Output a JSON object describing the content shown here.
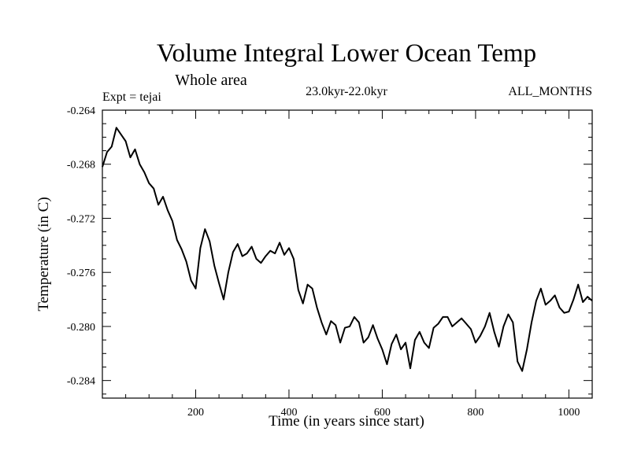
{
  "chart_data": {
    "type": "line",
    "title": "Volume Integral Lower Ocean Temp",
    "subtitle": "Whole area",
    "experiment_label": "Expt = tejai",
    "period_label": "23.0kyr-22.0kyr",
    "months_label": "ALL_MONTHS",
    "xlabel": "Time (in years since start)",
    "ylabel": "Temperature (in C)",
    "xlim": [
      0,
      1050
    ],
    "ylim": [
      -0.2853,
      -0.264
    ],
    "x_ticks": [
      200,
      400,
      600,
      800,
      1000
    ],
    "x_tick_labels": [
      "200",
      "400",
      "600",
      "800",
      "1000"
    ],
    "y_ticks": [
      -0.264,
      -0.268,
      -0.272,
      -0.276,
      -0.28,
      -0.284
    ],
    "y_tick_labels": [
      "-0.264",
      "-0.268",
      "-0.272",
      "-0.276",
      "-0.280",
      "-0.284"
    ],
    "line_color": "#000000",
    "series": [
      {
        "name": "Volume Integral Lower Ocean Temp",
        "x": [
          0,
          10,
          20,
          30,
          40,
          50,
          60,
          70,
          80,
          90,
          100,
          110,
          120,
          130,
          140,
          150,
          160,
          170,
          180,
          190,
          200,
          210,
          220,
          230,
          240,
          250,
          260,
          270,
          280,
          290,
          300,
          310,
          320,
          330,
          340,
          350,
          360,
          370,
          380,
          390,
          400,
          410,
          420,
          430,
          440,
          450,
          460,
          470,
          480,
          490,
          500,
          510,
          520,
          530,
          540,
          550,
          560,
          570,
          580,
          590,
          600,
          610,
          620,
          630,
          640,
          650,
          660,
          670,
          680,
          690,
          700,
          710,
          720,
          730,
          740,
          750,
          760,
          770,
          780,
          790,
          800,
          810,
          820,
          830,
          840,
          850,
          860,
          870,
          880,
          890,
          900,
          910,
          920,
          930,
          940,
          950,
          960,
          970,
          980,
          990,
          1000,
          1010,
          1020,
          1030,
          1040,
          1050
        ],
        "values": [
          -0.2682,
          -0.2671,
          -0.2667,
          -0.2653,
          -0.2658,
          -0.2663,
          -0.2675,
          -0.2669,
          -0.268,
          -0.2686,
          -0.2694,
          -0.2698,
          -0.271,
          -0.2704,
          -0.2714,
          -0.2722,
          -0.2736,
          -0.2743,
          -0.2752,
          -0.2766,
          -0.2772,
          -0.2742,
          -0.2728,
          -0.2737,
          -0.2755,
          -0.2768,
          -0.278,
          -0.276,
          -0.2745,
          -0.2739,
          -0.2748,
          -0.2746,
          -0.2741,
          -0.275,
          -0.2753,
          -0.2748,
          -0.2744,
          -0.2746,
          -0.2738,
          -0.2747,
          -0.2742,
          -0.275,
          -0.2773,
          -0.2783,
          -0.2769,
          -0.2772,
          -0.2786,
          -0.2797,
          -0.2806,
          -0.2796,
          -0.2799,
          -0.2812,
          -0.2801,
          -0.28,
          -0.2793,
          -0.2797,
          -0.2812,
          -0.2808,
          -0.2799,
          -0.2809,
          -0.2817,
          -0.2828,
          -0.2813,
          -0.2806,
          -0.2817,
          -0.2812,
          -0.2831,
          -0.281,
          -0.2804,
          -0.2812,
          -0.2816,
          -0.2801,
          -0.2798,
          -0.2793,
          -0.2793,
          -0.28,
          -0.2797,
          -0.2794,
          -0.2798,
          -0.2802,
          -0.2812,
          -0.2807,
          -0.28,
          -0.279,
          -0.2804,
          -0.2815,
          -0.28,
          -0.2791,
          -0.2797,
          -0.2826,
          -0.2833,
          -0.2817,
          -0.2797,
          -0.2781,
          -0.2772,
          -0.2784,
          -0.2781,
          -0.2777,
          -0.2786,
          -0.279,
          -0.2789,
          -0.278,
          -0.2769,
          -0.2782,
          -0.2778,
          -0.2781
        ]
      }
    ]
  }
}
